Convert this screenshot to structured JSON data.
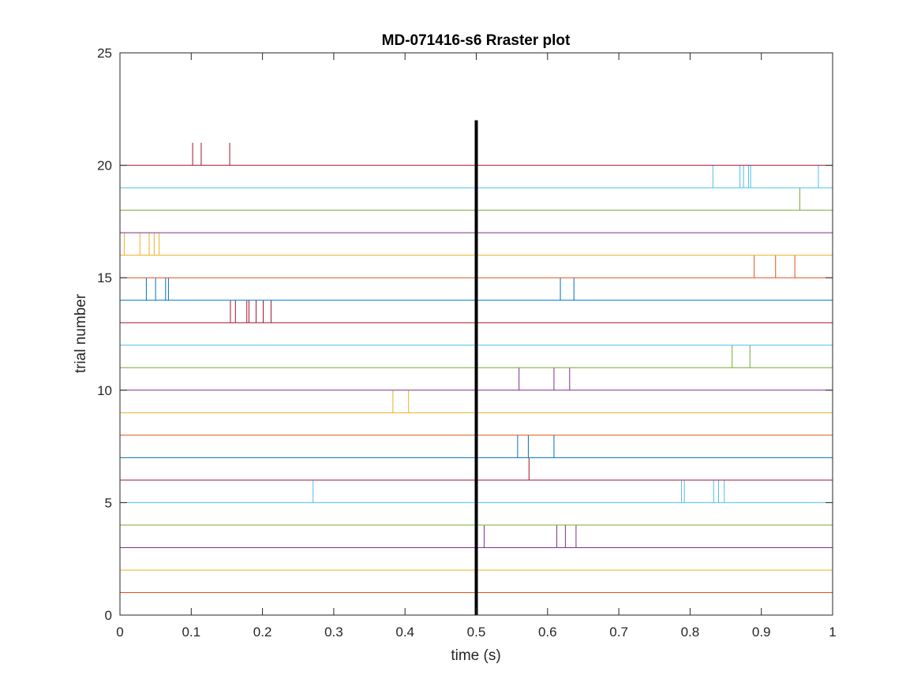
{
  "chart_data": {
    "type": "raster",
    "title": "MD-071416-s6 Rraster plot",
    "xlabel": "time (s)",
    "ylabel": "trial number",
    "xlim": [
      0,
      1
    ],
    "ylim": [
      0,
      25
    ],
    "xticks": [
      0,
      0.1,
      0.2,
      0.3,
      0.4,
      0.5,
      0.6,
      0.7,
      0.8,
      0.9,
      1
    ],
    "xtick_labels": [
      "0",
      "0.1",
      "0.2",
      "0.3",
      "0.4",
      "0.5",
      "0.6",
      "0.7",
      "0.8",
      "0.9",
      "1"
    ],
    "yticks": [
      0,
      5,
      10,
      15,
      20,
      25
    ],
    "ytick_labels": [
      "0",
      "5",
      "10",
      "15",
      "20",
      "25"
    ],
    "grid": false,
    "box": true,
    "event_marker": {
      "x": 0.5,
      "y_range": [
        0,
        22
      ],
      "color": "#000000"
    },
    "color_cycle": [
      "#0072BD",
      "#D95319",
      "#EDB120",
      "#7E2F8E",
      "#77AC30",
      "#4DBEEE",
      "#A2142F"
    ],
    "trials": [
      {
        "trial": 1,
        "spikes": []
      },
      {
        "trial": 2,
        "spikes": []
      },
      {
        "trial": 3,
        "spikes": []
      },
      {
        "trial": 4,
        "spikes": [
          0.511,
          0.613,
          0.625,
          0.64
        ]
      },
      {
        "trial": 5,
        "spikes": []
      },
      {
        "trial": 6,
        "spikes": [
          0.271,
          0.788,
          0.792,
          0.833,
          0.84,
          0.848
        ]
      },
      {
        "trial": 7,
        "spikes": [
          0.574
        ]
      },
      {
        "trial": 8,
        "spikes": [
          0.558,
          0.573,
          0.609
        ]
      },
      {
        "trial": 9,
        "spikes": []
      },
      {
        "trial": 10,
        "spikes": [
          0.383,
          0.405
        ]
      },
      {
        "trial": 11,
        "spikes": [
          0.56,
          0.609,
          0.631
        ]
      },
      {
        "trial": 12,
        "spikes": [
          0.859,
          0.884
        ]
      },
      {
        "trial": 13,
        "spikes": []
      },
      {
        "trial": 14,
        "spikes": [
          0.155,
          0.162,
          0.178,
          0.181,
          0.191,
          0.201,
          0.212
        ]
      },
      {
        "trial": 15,
        "spikes": [
          0.037,
          0.05,
          0.064,
          0.068,
          0.618,
          0.637
        ]
      },
      {
        "trial": 16,
        "spikes": [
          0.89,
          0.92,
          0.947
        ]
      },
      {
        "trial": 17,
        "spikes": [
          0.006,
          0.028,
          0.041,
          0.048,
          0.055
        ]
      },
      {
        "trial": 18,
        "spikes": []
      },
      {
        "trial": 19,
        "spikes": [
          0.954
        ]
      },
      {
        "trial": 20,
        "spikes": [
          0.832,
          0.87,
          0.875,
          0.882,
          0.885,
          0.98
        ]
      },
      {
        "trial": 21,
        "spikes": [
          0.102,
          0.114,
          0.154
        ]
      }
    ]
  }
}
